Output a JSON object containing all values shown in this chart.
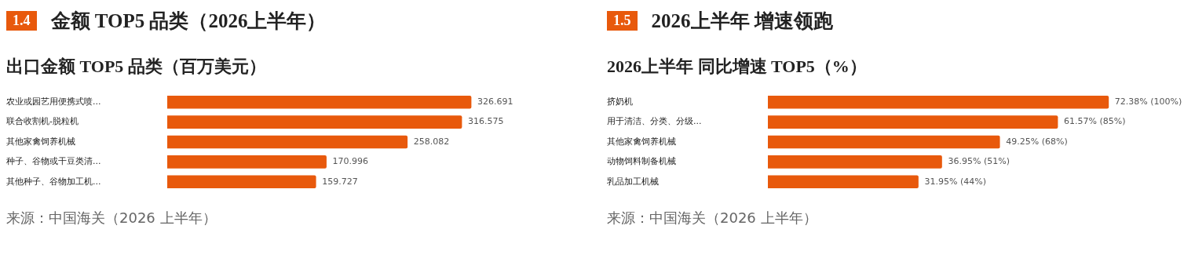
{
  "chart_data": [
    {
      "type": "bar",
      "orientation": "horizontal",
      "title": "1.4 金额 TOP5 品类（2026上半年）",
      "subtitle": "出口金额 TOP5 品类（百万美元）",
      "categories": [
        "农业或园艺用便携式喷...",
        "联合收割机-脱粒机",
        "其他家禽饲养机械",
        "种子、谷物或干豆类清...",
        "其他种子、谷物加工机..."
      ],
      "values": [
        326.691,
        316.575,
        258.082,
        170.996,
        159.727
      ],
      "color": "#e8590c",
      "data_labels": true,
      "annotations": [
        "来源：中国海关（2026 上半年）"
      ]
    },
    {
      "type": "bar",
      "orientation": "horizontal",
      "title": "1.5 2026上半年 增速领跑",
      "subtitle": "2026上半年 同比增速 TOP5（%）",
      "categories": [
        "挤奶机",
        "用于清洁、分类、分级...",
        "其他家禽饲养机械",
        "动物饲料制备机械",
        "乳品加工机械"
      ],
      "values": [
        72.38,
        61.57,
        49.25,
        36.95,
        31.95
      ],
      "value_labels": [
        "72.38% (100%)",
        "61.57% (85%)",
        "49.25% (68%)",
        "36.95% (51%)",
        "31.95% (44%)"
      ],
      "color": "#e8590c",
      "annotations": [
        "来源：中国海关（2026 上半年）"
      ]
    }
  ]
}
